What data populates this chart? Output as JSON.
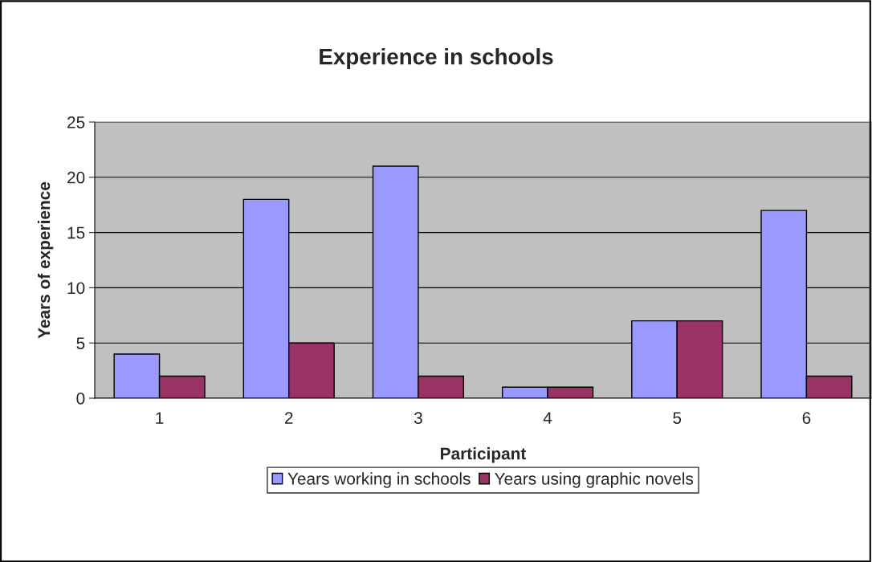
{
  "chart_data": {
    "type": "bar",
    "title": "Experience in schools",
    "xlabel": "Participant",
    "ylabel": "Years of experience",
    "categories": [
      "1",
      "2",
      "3",
      "4",
      "5",
      "6"
    ],
    "series": [
      {
        "name": "Years working in schools",
        "color": "#9999ff",
        "values": [
          4,
          18,
          21,
          1,
          7,
          17
        ]
      },
      {
        "name": "Years using graphic novels",
        "color": "#993366",
        "values": [
          2,
          5,
          2,
          1,
          7,
          2
        ]
      }
    ],
    "ylim": [
      0,
      25
    ],
    "yticks": [
      0,
      5,
      10,
      15,
      20,
      25
    ],
    "grid": "y",
    "legend": "bottom"
  }
}
